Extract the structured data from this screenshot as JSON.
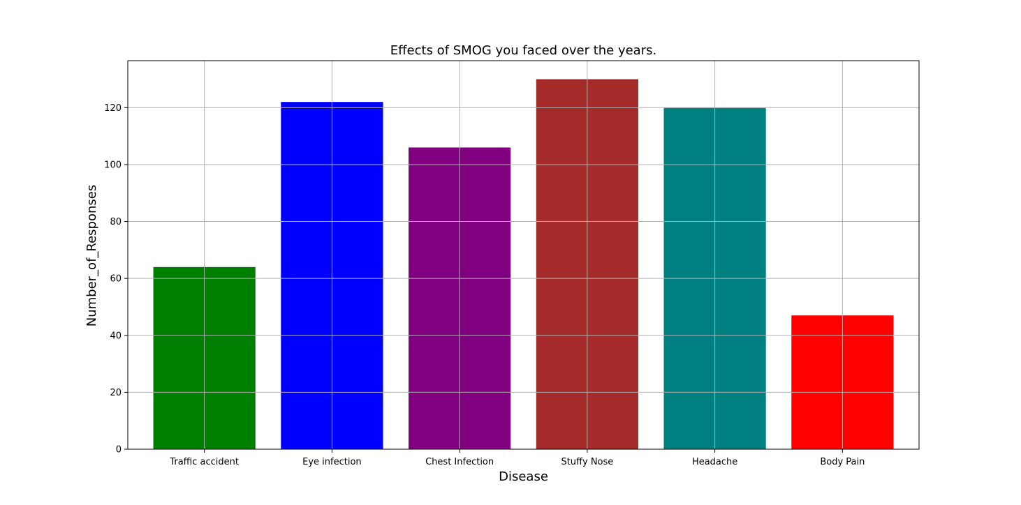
{
  "chart_data": {
    "type": "bar",
    "title": "Effects of SMOG you faced over the years.",
    "xlabel": "Disease",
    "ylabel": "Number_of_Responses",
    "categories": [
      "Traffic accident",
      "Eye infection",
      "Chest Infection",
      "Stuffy Nose",
      "Headache",
      "Body Pain"
    ],
    "values": [
      64,
      122,
      106,
      130,
      120,
      47
    ],
    "colors": [
      "#008000",
      "#0000ff",
      "#800080",
      "#a52a2a",
      "#008080",
      "#ff0000"
    ],
    "ylim": [
      0,
      136.5
    ],
    "yticks": [
      0,
      20,
      40,
      60,
      80,
      100,
      120
    ],
    "grid": true,
    "legend": "none"
  }
}
